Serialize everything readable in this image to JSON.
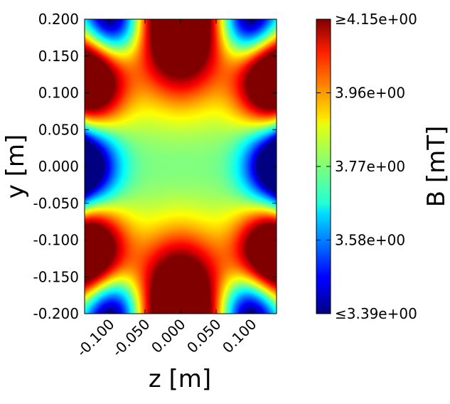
{
  "chart_data": {
    "type": "heatmap",
    "title": "",
    "xlabel": "z [m]",
    "ylabel": "y [m]",
    "colorbar_label": "B [mT]",
    "colormap": "jet",
    "xlim": [
      -0.135,
      0.135
    ],
    "ylim": [
      -0.2,
      0.2
    ],
    "xticks": [
      -0.1,
      -0.05,
      0.0,
      0.05,
      0.1
    ],
    "xtick_labels": [
      "-0.100",
      "-0.050",
      "0.000",
      "0.050",
      "0.100"
    ],
    "yticks": [
      0.2,
      0.15,
      0.1,
      0.05,
      0.0,
      -0.05,
      -0.1,
      -0.15,
      -0.2
    ],
    "ytick_labels": [
      "0.200",
      "0.150",
      "0.100",
      "0.050",
      "0.000",
      "-0.050",
      "-0.100",
      "-0.150",
      "-0.200"
    ],
    "colorbar_range": [
      3.39,
      4.15
    ],
    "colorbar_ticks": [
      4.15,
      3.96,
      3.77,
      3.58,
      3.39
    ],
    "colorbar_tick_labels": [
      "≥4.15e+00",
      "3.96e+00",
      "3.77e+00",
      "3.58e+00",
      "≤3.39e+00"
    ],
    "grid": false,
    "field_description": "Magnetic field magnitude in a 12-pole arrangement: high-field (dark red) lobes at z=0,y=±0.2 and at the four corners (z=±0.13, y=±0.12); low-field (dark blue) gaps between lobes; near-uniform ~3.77–3.85 mT in the center."
  }
}
